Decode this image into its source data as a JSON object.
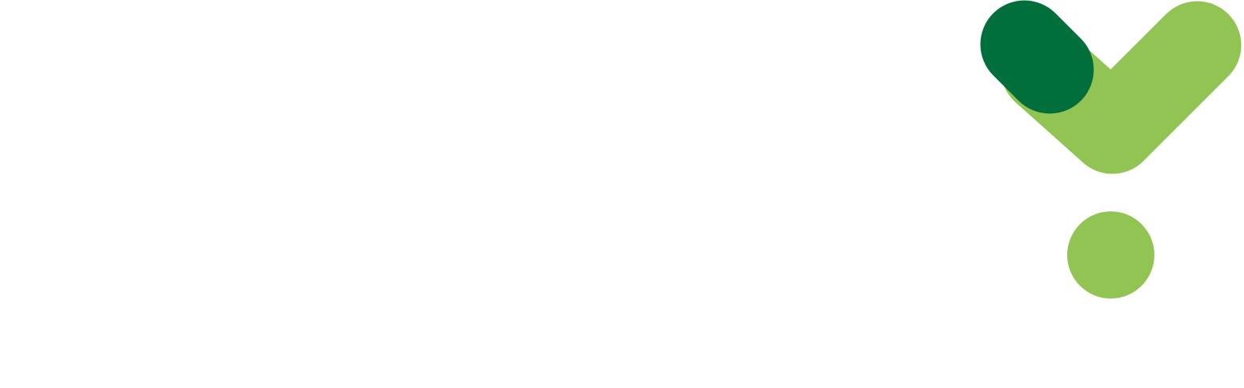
{
  "logo": {
    "icon": "checkmark-dot-logo-icon",
    "colors": {
      "dark_green": "#006F3C",
      "light_green": "#92C453",
      "background": "#FFFFFF"
    }
  }
}
